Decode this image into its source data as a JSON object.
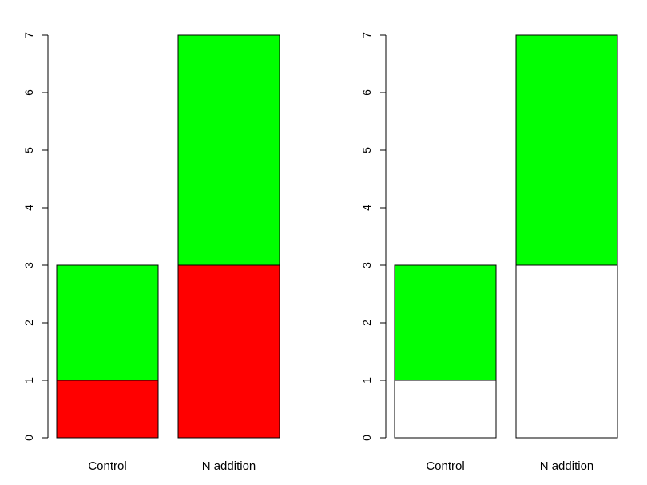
{
  "chart_data": [
    {
      "type": "bar",
      "stacked": true,
      "categories": [
        "Control",
        "N addition"
      ],
      "series": [
        {
          "values": [
            1,
            3
          ],
          "color": "#ff0000"
        },
        {
          "values": [
            2,
            4
          ],
          "color": "#00ff00"
        }
      ],
      "ylim": [
        0,
        7
      ],
      "yticks": [
        "0",
        "1",
        "2",
        "3",
        "4",
        "5",
        "6",
        "7"
      ],
      "title": "",
      "xlabel": "",
      "ylabel": "",
      "grid": false,
      "legend": "none"
    },
    {
      "type": "bar",
      "stacked": true,
      "categories": [
        "Control",
        "N addition"
      ],
      "series": [
        {
          "values": [
            1,
            3
          ],
          "color": "#ffffff"
        },
        {
          "values": [
            2,
            4
          ],
          "color": "#00ff00"
        }
      ],
      "ylim": [
        0,
        7
      ],
      "yticks": [
        "0",
        "1",
        "2",
        "3",
        "4",
        "5",
        "6",
        "7"
      ],
      "title": "",
      "xlabel": "",
      "ylabel": "",
      "grid": false,
      "legend": "none"
    }
  ]
}
